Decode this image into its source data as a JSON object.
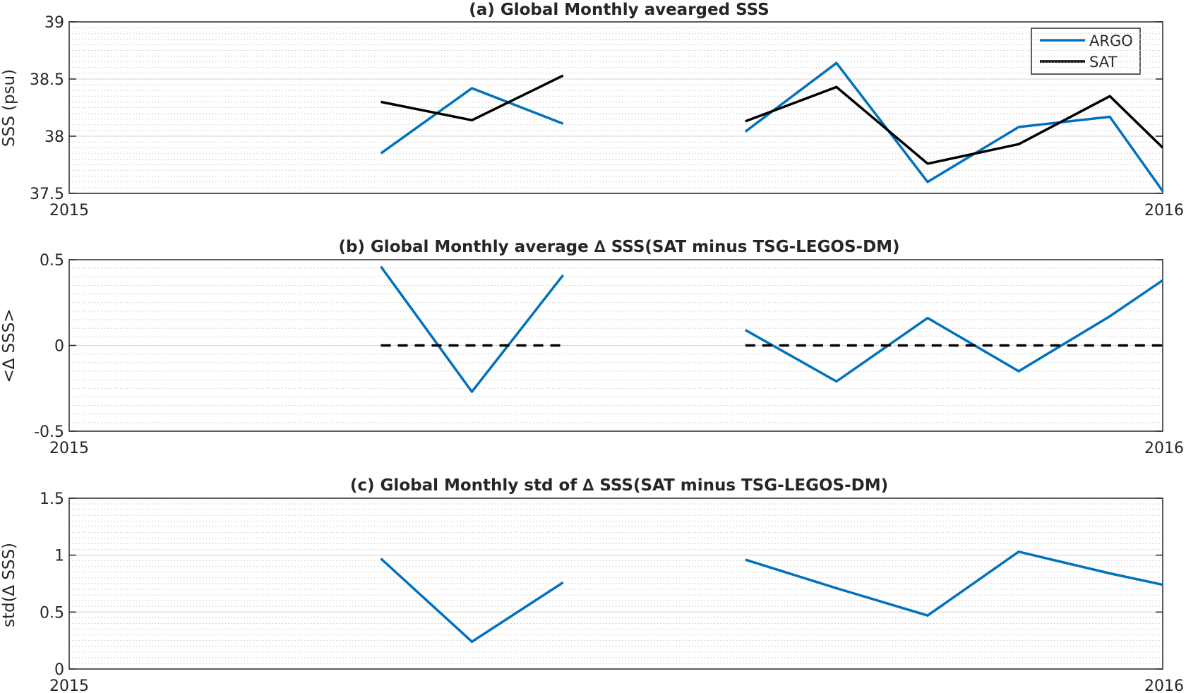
{
  "chart_data": [
    {
      "type": "line",
      "title": "(a) Global Monthly avearged SSS",
      "xlabel": "",
      "ylabel": "SSS (psu)",
      "xlim": [
        0,
        12
      ],
      "x_tick_labels": [
        "2015",
        "2016"
      ],
      "ylim": [
        37.5,
        39
      ],
      "y_ticks": [
        37.5,
        38,
        38.5,
        39
      ],
      "y_tick_labels": [
        "37.5",
        "38",
        "38.5",
        "39"
      ],
      "grid": true,
      "legend_position": "top-right",
      "series": [
        {
          "name": "ARGO",
          "color": "#0072BD",
          "dashed": false,
          "segments": [
            [
              [
                3.42,
                37.85
              ],
              [
                4.42,
                38.42
              ],
              [
                5.42,
                38.11
              ]
            ],
            [
              [
                7.42,
                38.04
              ],
              [
                8.42,
                38.64
              ],
              [
                9.42,
                37.6
              ],
              [
                10.42,
                38.08
              ],
              [
                11.42,
                38.17
              ],
              [
                12,
                37.52
              ]
            ]
          ]
        },
        {
          "name": "SAT",
          "color": "#000000",
          "dashed": false,
          "segments": [
            [
              [
                3.42,
                38.3
              ],
              [
                4.42,
                38.14
              ],
              [
                5.42,
                38.53
              ]
            ],
            [
              [
                7.42,
                38.13
              ],
              [
                8.42,
                38.43
              ],
              [
                9.42,
                37.76
              ],
              [
                10.42,
                37.93
              ],
              [
                11.42,
                38.35
              ],
              [
                12,
                37.9
              ]
            ]
          ]
        }
      ]
    },
    {
      "type": "line",
      "title": "(b) Global Monthly average ∆ SSS(SAT minus TSG-LEGOS-DM)",
      "xlabel": "",
      "ylabel": "<∆ SSS>",
      "xlim": [
        0,
        12
      ],
      "x_tick_labels": [
        "2015",
        "2016"
      ],
      "ylim": [
        -0.5,
        0.5
      ],
      "y_ticks": [
        -0.5,
        0,
        0.5
      ],
      "y_tick_labels": [
        "-0.5",
        "0",
        "0.5"
      ],
      "grid": true,
      "series": [
        {
          "color": "#0072BD",
          "dashed": false,
          "segments": [
            [
              [
                3.42,
                0.46
              ],
              [
                4.42,
                -0.27
              ],
              [
                5.42,
                0.41
              ]
            ],
            [
              [
                7.42,
                0.09
              ],
              [
                8.42,
                -0.21
              ],
              [
                9.42,
                0.16
              ],
              [
                10.42,
                -0.15
              ],
              [
                11.42,
                0.17
              ],
              [
                12,
                0.38
              ]
            ]
          ]
        },
        {
          "color": "#000000",
          "dashed": true,
          "segments": [
            [
              [
                3.42,
                0
              ],
              [
                5.42,
                0
              ]
            ],
            [
              [
                7.42,
                0
              ],
              [
                12,
                0
              ]
            ]
          ]
        }
      ]
    },
    {
      "type": "line",
      "title": "(c) Global Monthly std of ∆ SSS(SAT minus TSG-LEGOS-DM)",
      "xlabel": "",
      "ylabel": "std(∆ SSS)",
      "xlim": [
        0,
        12
      ],
      "x_tick_labels": [
        "2015",
        "2016"
      ],
      "ylim": [
        0,
        1.5
      ],
      "y_ticks": [
        0,
        0.5,
        1,
        1.5
      ],
      "y_tick_labels": [
        "0",
        "0.5",
        "1",
        "1.5"
      ],
      "grid": true,
      "series": [
        {
          "color": "#0072BD",
          "dashed": false,
          "segments": [
            [
              [
                3.42,
                0.97
              ],
              [
                4.42,
                0.24
              ],
              [
                5.42,
                0.76
              ]
            ],
            [
              [
                7.42,
                0.96
              ],
              [
                8.42,
                0.71
              ],
              [
                9.42,
                0.47
              ],
              [
                10.42,
                1.03
              ],
              [
                11.42,
                0.84
              ],
              [
                12,
                0.74
              ]
            ]
          ]
        }
      ]
    }
  ]
}
